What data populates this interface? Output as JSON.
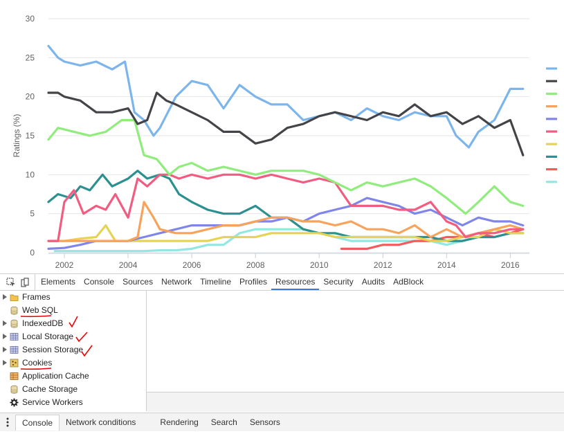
{
  "chart_data": {
    "type": "line",
    "ylabel": "Ratings (%)",
    "xlabel": "",
    "ylim": [
      0,
      30
    ],
    "xlim": [
      2001.5,
      2016.6
    ],
    "x_ticks": [
      {
        "value": 2002,
        "label": "2002"
      },
      {
        "value": 2004,
        "label": "2004"
      },
      {
        "value": 2006,
        "label": "2006"
      },
      {
        "value": 2008,
        "label": "2008"
      },
      {
        "value": 2010,
        "label": "2010"
      },
      {
        "value": 2012,
        "label": "2012"
      },
      {
        "value": 2014,
        "label": "2014"
      },
      {
        "value": 2016,
        "label": "2016"
      }
    ],
    "y_ticks": [
      {
        "value": 0,
        "label": "0"
      },
      {
        "value": 5,
        "label": "5"
      },
      {
        "value": 10,
        "label": "10"
      },
      {
        "value": 15,
        "label": "15"
      },
      {
        "value": 20,
        "label": "20"
      },
      {
        "value": 25,
        "label": "25"
      },
      {
        "value": 30,
        "label": "30"
      }
    ],
    "grid": true,
    "legend_placement": "right",
    "series": [
      {
        "color": "#7cb5ec",
        "x": [
          2001.5,
          2001.8,
          2002,
          2002.5,
          2003,
          2003.5,
          2003.9,
          2004.2,
          2004.5,
          2004.8,
          2005,
          2005.5,
          2006,
          2006.5,
          2007,
          2007.5,
          2008,
          2008.5,
          2009,
          2009.5,
          2010,
          2010.5,
          2011,
          2011.5,
          2012,
          2012.5,
          2013,
          2013.5,
          2014,
          2014.3,
          2014.7,
          2015,
          2015.5,
          2016,
          2016.4
        ],
        "y": [
          26.5,
          25,
          24.5,
          24,
          24.5,
          23.5,
          24.5,
          18,
          17,
          15,
          16,
          20,
          22,
          21.5,
          18.5,
          21.5,
          20,
          19,
          19,
          17,
          17.5,
          18,
          17,
          18.5,
          17.5,
          17,
          18,
          17.5,
          17.5,
          15,
          13.5,
          15.5,
          17,
          21,
          21
        ]
      },
      {
        "color": "#434348",
        "x": [
          2001.5,
          2001.8,
          2002,
          2002.5,
          2003,
          2003.5,
          2004,
          2004.3,
          2004.6,
          2004.9,
          2005.2,
          2005.5,
          2006,
          2006.5,
          2007,
          2007.5,
          2008,
          2008.5,
          2009,
          2009.5,
          2010,
          2010.5,
          2011,
          2011.5,
          2012,
          2012.5,
          2013,
          2013.5,
          2014,
          2014.5,
          2015,
          2015.5,
          2016,
          2016.4
        ],
        "y": [
          20.5,
          20.5,
          20,
          19.5,
          18,
          18,
          18.5,
          16.5,
          17,
          20.5,
          19.5,
          19,
          18,
          17,
          15.5,
          15.5,
          14,
          14.5,
          16,
          16.5,
          17.5,
          18,
          17.5,
          17,
          18,
          17.5,
          19,
          17.5,
          18,
          16.5,
          17.5,
          16,
          17,
          12.5
        ]
      },
      {
        "color": "#90ed7d",
        "x": [
          2001.5,
          2001.8,
          2002.3,
          2002.8,
          2003.3,
          2003.8,
          2004.2,
          2004.5,
          2004.9,
          2005.3,
          2005.6,
          2006,
          2006.5,
          2007,
          2007.5,
          2008,
          2008.5,
          2009,
          2009.5,
          2010,
          2010.5,
          2011,
          2011.5,
          2012,
          2012.5,
          2013,
          2013.5,
          2014,
          2014.3,
          2014.6,
          2015,
          2015.5,
          2016,
          2016.4
        ],
        "y": [
          14.5,
          16,
          15.5,
          15,
          15.5,
          17,
          17,
          12.5,
          12,
          10,
          11,
          11.5,
          10.5,
          11,
          10.5,
          10,
          10.5,
          10.5,
          10.5,
          10,
          9,
          8,
          9,
          8.5,
          9,
          9.5,
          8.5,
          7,
          6,
          5,
          6.5,
          8.5,
          6.5,
          6
        ]
      },
      {
        "color": "#f7a35c",
        "x": [
          2001.5,
          2002,
          2002.5,
          2003,
          2003.5,
          2004,
          2004.3,
          2004.5,
          2004.8,
          2005,
          2005.5,
          2006,
          2006.5,
          2007,
          2007.5,
          2008,
          2008.5,
          2009,
          2009.5,
          2010,
          2010.5,
          2011,
          2011.5,
          2012,
          2012.5,
          2013,
          2013.5,
          2014,
          2014.5,
          2015,
          2015.5,
          2016,
          2016.4
        ],
        "y": [
          1.5,
          1.5,
          1.5,
          1.5,
          1.5,
          1.5,
          2,
          6.5,
          4.5,
          3,
          2.5,
          2.5,
          3,
          3.5,
          3.5,
          4,
          4.5,
          4.5,
          4,
          4,
          3.5,
          4,
          3,
          3,
          2.5,
          3.5,
          2,
          3,
          2,
          2.5,
          3,
          3.5,
          3
        ]
      },
      {
        "color": "#8085e9",
        "x": [
          2001.5,
          2002,
          2002.5,
          2003,
          2003.5,
          2004,
          2004.5,
          2005,
          2005.5,
          2006,
          2006.5,
          2007,
          2007.5,
          2008,
          2008.5,
          2009,
          2009.5,
          2010,
          2010.5,
          2011,
          2011.5,
          2012,
          2012.5,
          2013,
          2013.5,
          2014,
          2014.5,
          2015,
          2015.5,
          2016,
          2016.4
        ],
        "y": [
          0.5,
          0.6,
          1,
          1.5,
          1.5,
          1.5,
          2,
          2.5,
          3,
          3.5,
          3.5,
          3.5,
          3.5,
          4,
          4,
          4.5,
          4,
          5,
          5.5,
          6,
          7,
          6.5,
          6,
          5,
          5.5,
          4.5,
          3.5,
          4.5,
          4,
          4,
          3.5
        ]
      },
      {
        "color": "#f15c80",
        "x": [
          2001.5,
          2001.8,
          2002,
          2002.3,
          2002.6,
          2003,
          2003.3,
          2003.6,
          2004,
          2004.3,
          2004.6,
          2005,
          2005.3,
          2005.6,
          2006,
          2006.5,
          2007,
          2007.5,
          2008,
          2008.5,
          2009,
          2009.5,
          2010,
          2010.5,
          2011,
          2011.5,
          2012,
          2012.5,
          2013,
          2013.5,
          2014,
          2014.3,
          2014.6,
          2015,
          2015.5,
          2016,
          2016.4
        ],
        "y": [
          1.5,
          1.5,
          6.5,
          8,
          5,
          6,
          5.5,
          7.5,
          4.5,
          9.5,
          8.5,
          10,
          10,
          9.5,
          10,
          9.5,
          10,
          10,
          9.5,
          10,
          9.5,
          9,
          9.5,
          9,
          6,
          6,
          6,
          5.5,
          5.5,
          6.5,
          4,
          3.5,
          2,
          2.5,
          2.5,
          3,
          3
        ]
      },
      {
        "color": "#e4d354",
        "x": [
          2001.5,
          2002,
          2002.5,
          2003,
          2003.3,
          2003.6,
          2004,
          2004.5,
          2005,
          2005.5,
          2006,
          2006.5,
          2007,
          2007.5,
          2008,
          2008.5,
          2009,
          2009.5,
          2010,
          2010.5,
          2011,
          2011.5,
          2012,
          2012.5,
          2013,
          2013.5,
          2014,
          2014.5,
          2015,
          2015.5,
          2016,
          2016.4
        ],
        "y": [
          1.5,
          1.5,
          1.8,
          2,
          3.5,
          1.5,
          1.5,
          1.5,
          1.5,
          1.5,
          1.5,
          1.5,
          2,
          2,
          2,
          2.5,
          2.5,
          2.5,
          2.5,
          2,
          2,
          2,
          2,
          2,
          2,
          1.5,
          1.5,
          2,
          2,
          3,
          2.5,
          2.5
        ]
      },
      {
        "color": "#2b908f",
        "x": [
          2001.5,
          2001.8,
          2002.2,
          2002.5,
          2002.8,
          2003.2,
          2003.5,
          2004,
          2004.3,
          2004.6,
          2005,
          2005.3,
          2005.6,
          2006,
          2006.5,
          2007,
          2007.5,
          2008,
          2008.5,
          2009,
          2009.5,
          2010,
          2010.5,
          2011,
          2011.5,
          2012,
          2012.5,
          2013,
          2013.5,
          2014,
          2014.5,
          2015,
          2015.5,
          2016,
          2016.4
        ],
        "y": [
          6.5,
          7.5,
          7,
          8.5,
          8,
          10,
          8.5,
          9.5,
          10.5,
          9.5,
          10,
          9.5,
          7.5,
          6.5,
          5.5,
          5,
          5,
          6,
          4.5,
          4.5,
          3,
          2.5,
          2.5,
          2,
          2,
          2,
          2,
          2,
          2,
          1.5,
          1.5,
          2,
          2,
          2.5,
          2.5
        ]
      },
      {
        "color": "#f45b5b",
        "x": [
          2010.7,
          2011,
          2011.5,
          2012,
          2012.5,
          2013,
          2013.5,
          2014,
          2014.5,
          2015,
          2015.5,
          2016,
          2016.4
        ],
        "y": [
          0.5,
          0.5,
          0.5,
          1,
          1,
          1.5,
          1.5,
          2,
          2,
          2.5,
          2,
          2.5,
          3
        ]
      },
      {
        "color": "#91e8e1",
        "x": [
          2001.7,
          2002.5,
          2003,
          2003.5,
          2004,
          2004.5,
          2005,
          2005.5,
          2006,
          2006.5,
          2007,
          2007.5,
          2008,
          2008.5,
          2009,
          2009.5,
          2010,
          2010.5,
          2011,
          2011.5,
          2012,
          2012.5,
          2013,
          2013.5,
          2014,
          2014.5,
          2015,
          2015.5,
          2016,
          2016.4
        ],
        "y": [
          0.2,
          0.2,
          0.2,
          0.2,
          0.2,
          0.2,
          0.3,
          0.3,
          0.5,
          1,
          1,
          2.5,
          3,
          3,
          3,
          3,
          2.5,
          2,
          1.5,
          1.5,
          1.5,
          1.5,
          1.5,
          1.5,
          1,
          1.5,
          2,
          2,
          2.5,
          2.5
        ]
      }
    ]
  },
  "devtools": {
    "toolbar": {
      "inspect_icon": "inspect-element-icon",
      "device_icon": "device-mode-icon"
    },
    "tabs": [
      {
        "label": "Elements"
      },
      {
        "label": "Console"
      },
      {
        "label": "Sources"
      },
      {
        "label": "Network"
      },
      {
        "label": "Timeline"
      },
      {
        "label": "Profiles"
      },
      {
        "label": "Resources",
        "active": true
      },
      {
        "label": "Security"
      },
      {
        "label": "Audits"
      },
      {
        "label": "AdBlock"
      }
    ],
    "tree": [
      {
        "label": "Frames",
        "icon": "folder-icon",
        "expandable": true
      },
      {
        "label": "Web SQL",
        "icon": "database-icon",
        "expandable": false
      },
      {
        "label": "IndexedDB",
        "icon": "database-icon",
        "expandable": true
      },
      {
        "label": "Local Storage",
        "icon": "grid-table-icon",
        "expandable": true
      },
      {
        "label": "Session Storage",
        "icon": "grid-table-icon",
        "expandable": true
      },
      {
        "label": "Cookies",
        "icon": "cookie-icon",
        "expandable": true
      },
      {
        "label": "Application Cache",
        "icon": "app-cache-icon",
        "expandable": false
      },
      {
        "label": "Cache Storage",
        "icon": "database-icon",
        "expandable": false
      },
      {
        "label": "Service Workers",
        "icon": "gear-icon",
        "expandable": false
      }
    ],
    "drawer": {
      "menu_icon": "kebab-menu-icon",
      "tabs": [
        {
          "label": "Console",
          "active": true
        },
        {
          "label": "Network conditions"
        },
        {
          "label": "Rendering"
        },
        {
          "label": "Search"
        },
        {
          "label": "Sensors"
        }
      ]
    }
  },
  "annotations": {
    "underline_color": "#ee0000",
    "check_color": "#ee0000"
  }
}
